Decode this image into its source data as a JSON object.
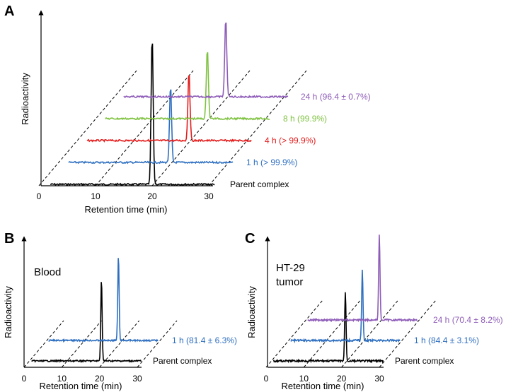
{
  "chart_data": [
    {
      "panel": "A",
      "type": "line",
      "title": "",
      "xlabel": "Retention time (min)",
      "ylabel": "Radioactivity",
      "xlim": [
        0,
        30
      ],
      "x_ticks": [
        "0",
        "10",
        "20",
        "30"
      ],
      "series": [
        {
          "name": "Parent complex",
          "label": "Parent complex",
          "color": "#000000",
          "peak_min": 20.0
        },
        {
          "name": "1 h",
          "label": "1 h (> 99.9%)",
          "color": "#2e6fc0",
          "peak_min": 20.0
        },
        {
          "name": "4 h",
          "label": "4 h (> 99.9%)",
          "color": "#e31c1c",
          "peak_min": 20.0
        },
        {
          "name": "8 h",
          "label": "8 h (99.9%)",
          "color": "#7fc241",
          "peak_min": 20.0
        },
        {
          "name": "24 h",
          "label": "24 h (96.4 ± 0.7%)",
          "color": "#8e5cb8",
          "peak_min": 20.0
        }
      ]
    },
    {
      "panel": "B",
      "type": "line",
      "title": "Blood",
      "xlabel": "Retention time (min)",
      "ylabel": "Radioactivity",
      "xlim": [
        0,
        30
      ],
      "x_ticks": [
        "0",
        "10",
        "20",
        "30"
      ],
      "series": [
        {
          "name": "Parent complex",
          "label": "Parent complex",
          "color": "#000000",
          "peak_min": 20.5
        },
        {
          "name": "1 h",
          "label": "1 h (81.4 ± 6.3%)",
          "color": "#2e6fc0",
          "peak_min": 20.5
        }
      ]
    },
    {
      "panel": "C",
      "type": "line",
      "title": "HT-29 tumor",
      "xlabel": "Retention time (min)",
      "ylabel": "Radioactivity",
      "xlim": [
        0,
        30
      ],
      "x_ticks": [
        "0",
        "10",
        "20",
        "30"
      ],
      "series": [
        {
          "name": "Parent complex",
          "label": "Parent complex",
          "color": "#000000",
          "peak_min": 21.0
        },
        {
          "name": "1 h",
          "label": "1 h (84.4 ± 3.1%)",
          "color": "#2e6fc0",
          "peak_min": 21.0
        },
        {
          "name": "24 h",
          "label": "24 h (70.4 ± 8.2%)",
          "color": "#8e5cb8",
          "peak_min": 21.0
        }
      ]
    }
  ],
  "panels": {
    "A": {
      "letter": "A"
    },
    "B": {
      "letter": "B",
      "annotation": "Blood"
    },
    "C": {
      "letter": "C",
      "annotation_line1": "HT-29",
      "annotation_line2": "tumor"
    }
  }
}
